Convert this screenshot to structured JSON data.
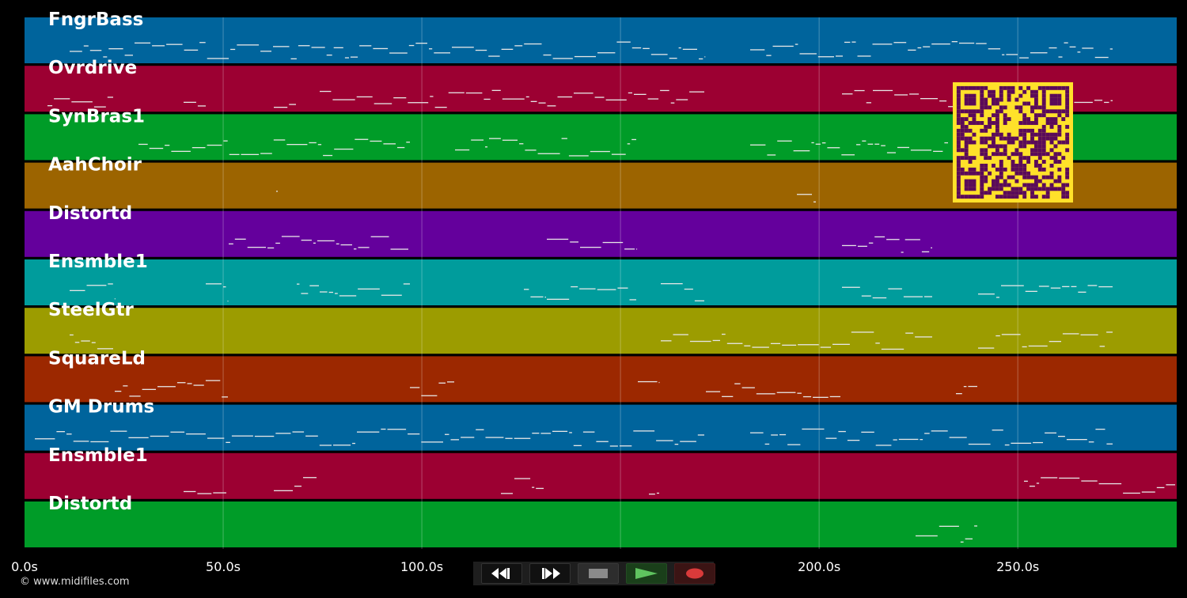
{
  "tracks": [
    {
      "name": "FngrBass",
      "color": "#00649c"
    },
    {
      "name": "Ovrdrive",
      "color": "#9c0032"
    },
    {
      "name": "SynBras1",
      "color": "#009c28"
    },
    {
      "name": "AahChoir",
      "color": "#9c6400"
    },
    {
      "name": "Distortd",
      "color": "#64009c"
    },
    {
      "name": "Ensmble1",
      "color": "#009c9c"
    },
    {
      "name": "SteelGtr",
      "color": "#9c9c00"
    },
    {
      "name": "SquareLd",
      "color": "#9c2800"
    },
    {
      "name": "GM Drums",
      "color": "#00649c"
    },
    {
      "name": "Ensmble1",
      "color": "#9c0032"
    },
    {
      "name": "Distortd",
      "color": "#009c28"
    }
  ],
  "axis": {
    "ticks": [
      "0.0s",
      "50.0s",
      "100.0s",
      "150.0s",
      "200.0s",
      "250.0s"
    ],
    "tick_values": [
      0,
      50,
      100,
      150,
      200,
      250
    ],
    "max_seconds": 290
  },
  "footer": {
    "copyright": "© www.midifiles.com"
  },
  "transport": {
    "rewind": "rewind-icon",
    "fast_forward": "fast-forward-icon",
    "stop": "stop-icon",
    "play": "play-icon",
    "record": "record-icon"
  },
  "colors": {
    "note": "#e6e6e6",
    "grid": "#ffffff",
    "qr_fg": "#5a0a5a",
    "qr_bg": "#ffe12a",
    "play": "#5fc35f",
    "record": "#d93a3a",
    "stop": "#8a8a8a"
  }
}
